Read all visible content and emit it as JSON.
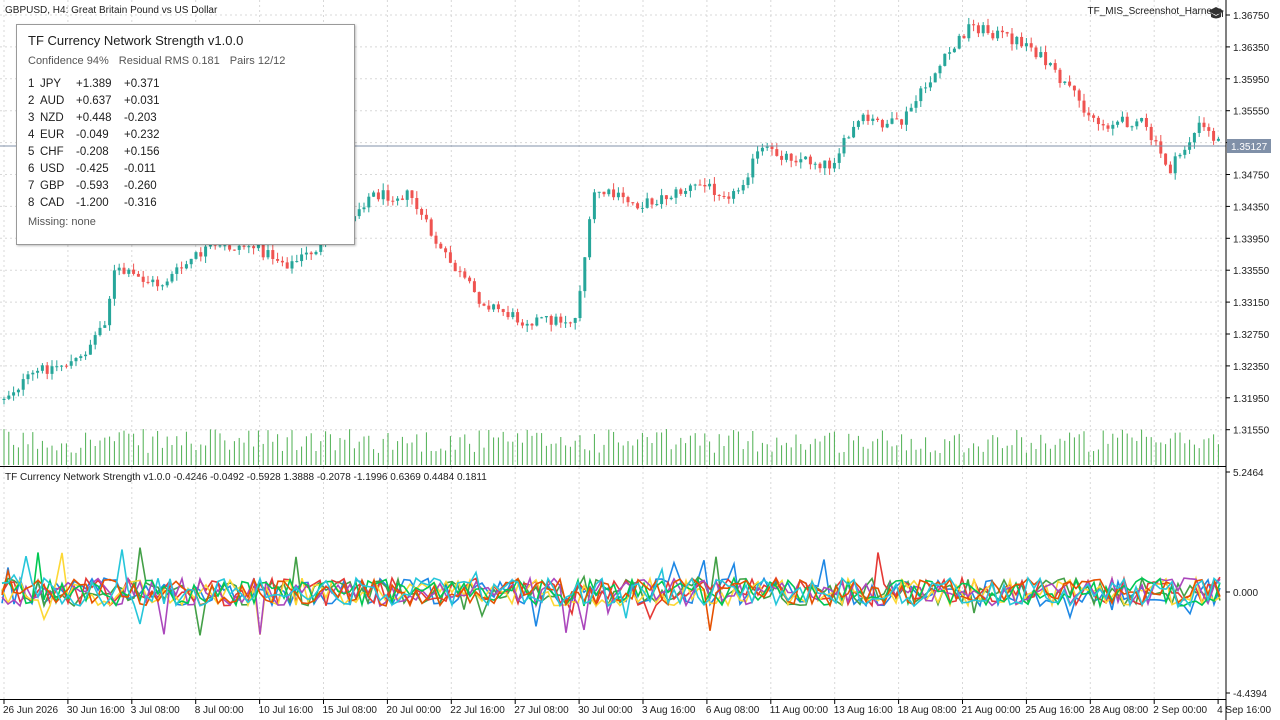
{
  "chart_header": {
    "symbol": "GBPUSD",
    "timeframe": "H4",
    "description": "Great Britain Pound vs US Dollar"
  },
  "expert": {
    "name": "TF_MIS_Screenshot_Harness",
    "icon": "graduation-cap-icon"
  },
  "price_axis": {
    "labels": [
      "1.36750",
      "1.36350",
      "1.35950",
      "1.35550",
      "1.35150",
      "1.34750",
      "1.34350",
      "1.33950",
      "1.33550",
      "1.33150",
      "1.32750",
      "1.32350",
      "1.31950",
      "1.31550"
    ],
    "current_price": "1.35127"
  },
  "strength_panel": {
    "title": "TF Currency Network Strength  v1.0.0",
    "confidence": "Confidence 94%",
    "residual": "Residual RMS 0.181",
    "pairs": "Pairs 12/12",
    "rankings": [
      {
        "rank": "1",
        "currency": "JPY",
        "strength": "+1.389",
        "change": "+0.371"
      },
      {
        "rank": "2",
        "currency": "AUD",
        "strength": "+0.637",
        "change": "+0.031"
      },
      {
        "rank": "3",
        "currency": "NZD",
        "strength": "+0.448",
        "change": "-0.203"
      },
      {
        "rank": "4",
        "currency": "EUR",
        "strength": "-0.049",
        "change": "+0.232"
      },
      {
        "rank": "5",
        "currency": "CHF",
        "strength": "-0.208",
        "change": "+0.156"
      },
      {
        "rank": "6",
        "currency": "USD",
        "strength": "-0.425",
        "change": "-0.011"
      },
      {
        "rank": "7",
        "currency": "GBP",
        "strength": "-0.593",
        "change": "-0.260"
      },
      {
        "rank": "8",
        "currency": "CAD",
        "strength": "-1.200",
        "change": "-0.316"
      }
    ],
    "missing": "Missing: none"
  },
  "indicator": {
    "label": "TF Currency Network Strength v1.0.0 -0.4246 -0.0492 -0.5928 1.3888 -0.2078 -1.1996 0.6369 0.4484 0.1811",
    "axis_labels": [
      "5.2464",
      "0.000",
      "-4.4394"
    ],
    "series_colors": [
      "#1e88e5",
      "#43a047",
      "#e53935",
      "#fdd835",
      "#ab47bc",
      "#00c853",
      "#e65100",
      "#26c6da"
    ]
  },
  "time_axis": {
    "labels": [
      "26 Jun 2026",
      "30 Jun 16:00",
      "3 Jul 08:00",
      "8 Jul 00:00",
      "10 Jul 16:00",
      "15 Jul 08:00",
      "20 Jul 00:00",
      "22 Jul 16:00",
      "27 Jul 08:00",
      "30 Jul 00:00",
      "3 Aug 16:00",
      "6 Aug 08:00",
      "11 Aug 00:00",
      "13 Aug 16:00",
      "18 Aug 08:00",
      "21 Aug 00:00",
      "25 Aug 16:00",
      "28 Aug 08:00",
      "2 Sep 00:00",
      "4 Sep 16:00"
    ]
  },
  "colors": {
    "bull": "#26a69a",
    "bear": "#ef5350",
    "volume": "#4caf50",
    "grid": "#d8d8d8",
    "bid_line": "#8090a8"
  }
}
